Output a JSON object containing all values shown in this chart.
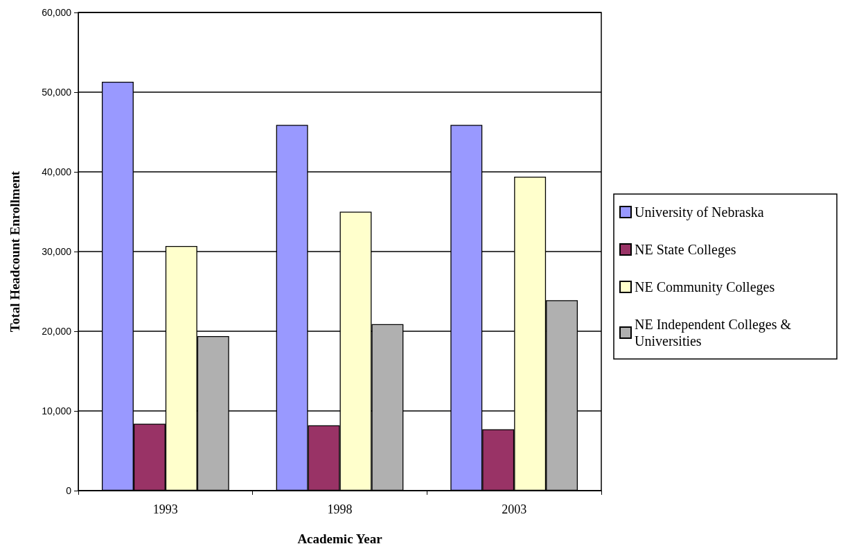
{
  "chart_data": {
    "type": "bar",
    "xlabel": "Academic Year",
    "ylabel": "Total Headcount Enrollment",
    "categories": [
      "1993",
      "1998",
      "2003"
    ],
    "series": [
      {
        "name": "University of Nebraska",
        "color": "#9999ff",
        "values": [
          51300,
          45900,
          45900
        ]
      },
      {
        "name": "NE State Colleges",
        "color": "#993366",
        "values": [
          8400,
          8200,
          7700
        ]
      },
      {
        "name": "NE Community Colleges",
        "color": "#ffffcc",
        "values": [
          30700,
          35000,
          39400
        ]
      },
      {
        "name": "NE Independent Colleges & Universities",
        "color": "#b0b0b0",
        "values": [
          19400,
          20900,
          23900
        ]
      }
    ],
    "ylim": [
      0,
      60000
    ],
    "yticks": [
      0,
      {
        "value": 10000,
        "label": "10,000"
      },
      {
        "value": 20000,
        "label": "20,000"
      },
      {
        "value": 30000,
        "label": "30,000"
      },
      {
        "value": 40000,
        "label": "40,000"
      },
      {
        "value": 50000,
        "label": "50,000"
      },
      {
        "value": 60000,
        "label": "60,000"
      }
    ],
    "grid": "y",
    "legend": "right"
  }
}
